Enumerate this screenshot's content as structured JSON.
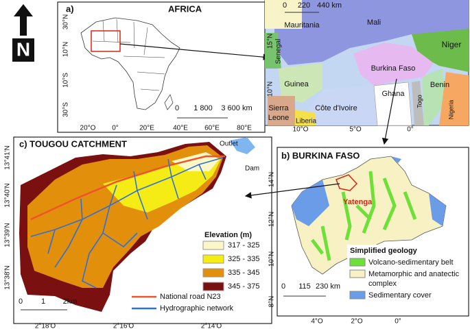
{
  "north_arrow": "N",
  "panel_a": {
    "label": "a)",
    "title": "AFRICA",
    "lat_ticks": [
      "30°N",
      "10°N",
      "10°S",
      "30°S"
    ],
    "lon_ticks": [
      "20°O",
      "0°",
      "20°E",
      "40°E",
      "60°E",
      "80°E"
    ],
    "scale": [
      "0",
      "1 800",
      "3 600 km"
    ]
  },
  "inset": {
    "countries": [
      "Mauritania",
      "Mali",
      "Niger",
      "Senegal",
      "Burkina Faso",
      "Guinea",
      "Benin",
      "Ghana",
      "Togo",
      "Sierra",
      "Leone",
      "Côte d'Ivoire",
      "Liberia",
      "Nigeria"
    ],
    "scale": [
      "0",
      "220",
      "440 km"
    ],
    "lat_ticks": [
      "15°N",
      "10°N"
    ],
    "lon_ticks": [
      "10°O",
      "5°O",
      "0°"
    ]
  },
  "panel_b": {
    "title": "b) BURKINA FASO",
    "region": "Yatenga",
    "lat_ticks": [
      "14°N",
      "12°N",
      "10°N",
      "8°N"
    ],
    "lon_ticks": [
      "4°O",
      "2°O",
      "0°"
    ],
    "scale": [
      "0",
      "115",
      "230 km"
    ],
    "legend_title": "Simplified geology",
    "legend": [
      "Volcano-sedimentary belt",
      "Metamorphic and anatectic",
      "complex",
      "Sedimentary cover"
    ]
  },
  "panel_c": {
    "title": "c) TOUGOU CATCHMENT",
    "outlet": "Outlet",
    "dam": "Dam",
    "lat_ticks": [
      "13°41'N",
      "13°40'N",
      "13°39'N",
      "13°38'N"
    ],
    "lon_ticks": [
      "2°18'O",
      "2°16'O",
      "2°14'O"
    ],
    "scale": [
      "0",
      "1",
      "2km"
    ],
    "elevation_title": "Elevation (m)",
    "elevation_classes": [
      "317 - 325",
      "325 - 335",
      "335 - 345",
      "345 - 375"
    ],
    "lines_legend": [
      "National road N23",
      "Hydrographic network"
    ]
  }
}
